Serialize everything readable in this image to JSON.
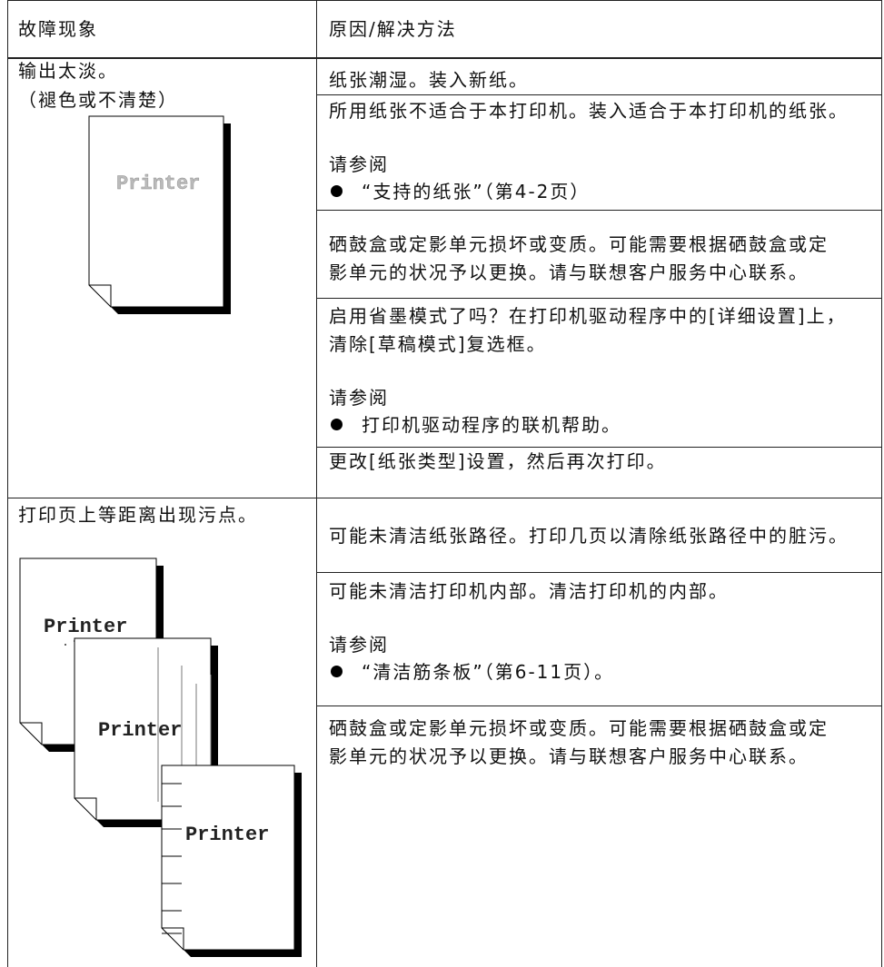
{
  "table": {
    "header": [
      "故障现象",
      "原因/解决方法"
    ],
    "rows": [
      {
        "symptom": [
          "输出太淡。",
          "（褪色或不清楚）"
        ],
        "illustrations": [
          "Printer"
        ],
        "solutions": [
          {
            "text": [
              "纸张潮湿。装入新纸。"
            ]
          },
          {
            "text": [
              "所用纸张不适合于本打印机。装入适合于本打印机的纸张。"
            ],
            "see": "请参阅",
            "ref": "“支持的纸张”（第4-2页）"
          },
          {
            "text": [
              "硒鼓盒或定影单元损坏或变质。可能需要根据硒鼓盒或定",
              "影单元的状况予以更换。请与联想客户服务中心联系。"
            ]
          },
          {
            "text": [
              "启用省墨模式了吗？在打印机驱动程序中的[详细设置]上，",
              "清除[草稿模式]复选框。"
            ],
            "see": "请参阅",
            "ref": "打印机驱动程序的联机帮助。"
          },
          {
            "text": [
              "更改[纸张类型]设置，然后再次打印。"
            ]
          }
        ]
      },
      {
        "symptom": [
          "打印页上等距离出现污点。"
        ],
        "illustrations": [
          "Printer",
          "Printer",
          "Printer"
        ],
        "solutions": [
          {
            "text": [
              "可能未清洁纸张路径。打印几页以清除纸张路径中的脏污。"
            ]
          },
          {
            "text": [
              "可能未清洁打印机内部。清洁打印机的内部。"
            ],
            "see": "请参阅",
            "ref": "“清洁筋条板”（第6-11页）。"
          },
          {
            "text": [
              "硒鼓盒或定影单元损坏或变质。可能需要根据硒鼓盒或定",
              "影单元的状况予以更换。请与联想客户服务中心联系。"
            ]
          }
        ]
      }
    ]
  }
}
